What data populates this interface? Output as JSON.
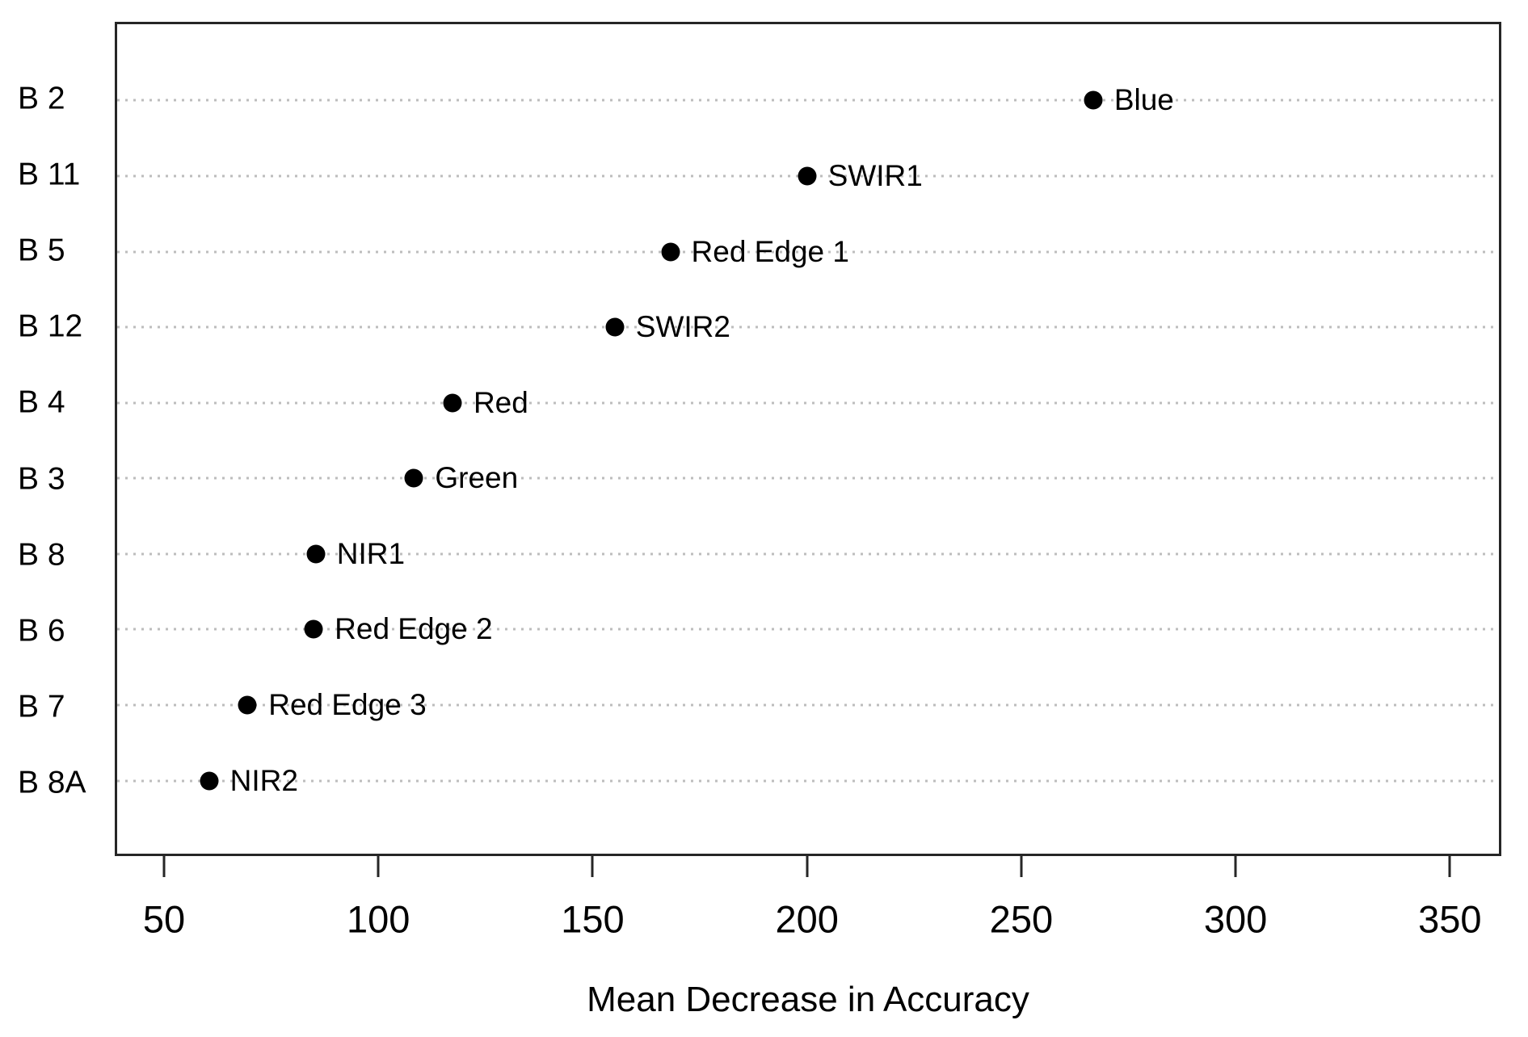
{
  "chart_data": {
    "type": "scatter",
    "subtype": "dot-plot",
    "title": "",
    "xlabel": "Mean Decrease in Accuracy",
    "ylabel": "",
    "categories": [
      "B 2",
      "B 11",
      "B 5",
      "B 12",
      "B 4",
      "B 3",
      "B 8",
      "B 6",
      "B 7",
      "B 8A"
    ],
    "series": [
      {
        "name": "Mean Decrease in Accuracy",
        "point_labels": [
          "Blue",
          "SWIR1",
          "Red Edge 1",
          "SWIR2",
          "Red",
          "Green",
          "NIR1",
          "Red Edge 2",
          "Red Edge 3",
          "NIR2"
        ],
        "values": [
          267,
          200,
          168,
          155,
          117,
          108,
          85,
          84.5,
          69,
          60
        ]
      }
    ],
    "x_ticks": [
      50,
      100,
      150,
      200,
      250,
      300,
      350
    ],
    "xlim": [
      38.5,
      362
    ],
    "grid": "horizontal dotted lines at each category",
    "legend_position": "none",
    "colors": {
      "point": "#000000",
      "grid": "#bdbdbd",
      "axis": "#262626",
      "background": "#ffffff",
      "text": "#000000"
    }
  }
}
